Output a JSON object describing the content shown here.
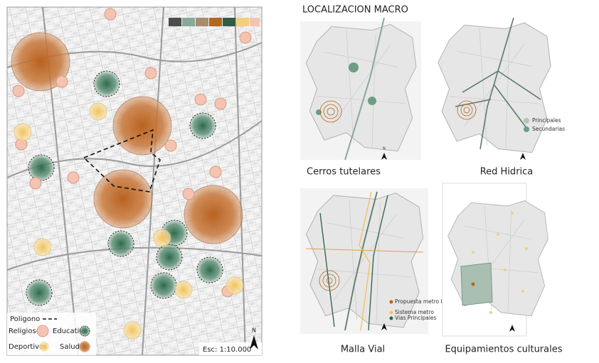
{
  "main_map": {
    "legend": {
      "polygon": "Poligono",
      "religious": "Religioso",
      "education": "Educativo",
      "sports": "Deportivos",
      "health": "Salud"
    },
    "scale": "Esc: 1:10.000",
    "north": "N"
  },
  "macro": {
    "title": "LOCALIZACION MACRO",
    "panels": [
      {
        "caption": "Cerros tutelares"
      },
      {
        "caption": "Red Hidrica",
        "legend": [
          "Principales",
          "Secundarias"
        ]
      },
      {
        "caption": "Malla Vial",
        "legend": [
          "Propuesta metro ligero",
          "Sistema metro",
          "Vias Principales"
        ]
      },
      {
        "caption": "Equipamientos culturales"
      }
    ]
  }
}
